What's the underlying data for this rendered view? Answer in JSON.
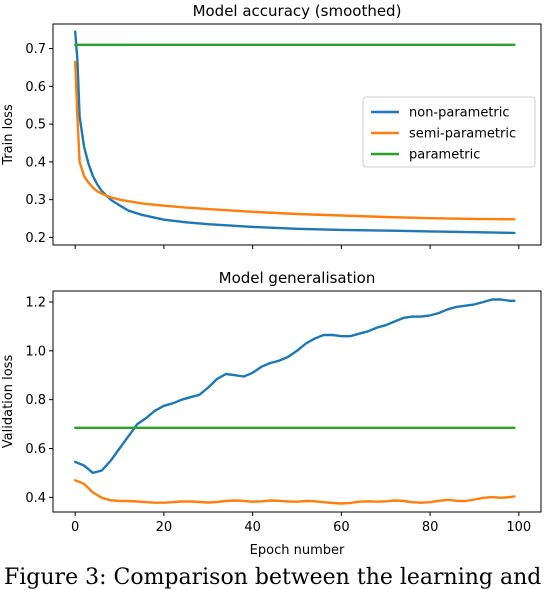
{
  "caption": "Figure 3: Comparison between the learning and",
  "chart_data": [
    {
      "type": "line",
      "title": "Model accuracy (smoothed)",
      "xlabel": "",
      "ylabel": "Train loss",
      "xlim": [
        -5,
        105
      ],
      "ylim": [
        0.18,
        0.765
      ],
      "xticks": [
        0,
        20,
        40,
        60,
        80,
        100
      ],
      "xtick_labels": [
        "",
        "",
        "",
        "",
        "",
        ""
      ],
      "yticks": [
        0.2,
        0.3,
        0.4,
        0.5,
        0.6,
        0.7
      ],
      "ytick_labels": [
        "0.2",
        "0.3",
        "0.4",
        "0.5",
        "0.6",
        "0.7"
      ],
      "grid": false,
      "legend": "center-right",
      "series": [
        {
          "name": "non-parametric",
          "color": "#1f77b4",
          "x": [
            0,
            0.5,
            1,
            2,
            3,
            4,
            5,
            6,
            8,
            10,
            12,
            15,
            20,
            25,
            30,
            40,
            50,
            60,
            70,
            80,
            90,
            99
          ],
          "y": [
            0.745,
            0.67,
            0.52,
            0.44,
            0.395,
            0.362,
            0.34,
            0.323,
            0.3,
            0.285,
            0.271,
            0.26,
            0.247,
            0.24,
            0.235,
            0.228,
            0.223,
            0.22,
            0.218,
            0.216,
            0.214,
            0.212
          ]
        },
        {
          "name": "semi-parametric",
          "color": "#ff7f0e",
          "x": [
            0,
            0.5,
            1,
            2,
            3,
            4,
            5,
            6,
            8,
            10,
            12,
            15,
            20,
            25,
            30,
            40,
            50,
            60,
            70,
            80,
            90,
            99
          ],
          "y": [
            0.665,
            0.52,
            0.4,
            0.362,
            0.345,
            0.332,
            0.322,
            0.316,
            0.306,
            0.3,
            0.296,
            0.29,
            0.284,
            0.279,
            0.275,
            0.268,
            0.262,
            0.258,
            0.254,
            0.251,
            0.249,
            0.248
          ]
        },
        {
          "name": "parametric",
          "color": "#2ca02c",
          "x": [
            0,
            99
          ],
          "y": [
            0.71,
            0.71
          ]
        }
      ]
    },
    {
      "type": "line",
      "title": "Model generalisation",
      "xlabel": "Epoch number",
      "ylabel": "Validation loss",
      "xlim": [
        -5,
        105
      ],
      "ylim": [
        0.34,
        1.245
      ],
      "xticks": [
        0,
        20,
        40,
        60,
        80,
        100
      ],
      "xtick_labels": [
        "0",
        "20",
        "40",
        "60",
        "80",
        "100"
      ],
      "yticks": [
        0.4,
        0.6,
        0.8,
        1.0,
        1.2
      ],
      "ytick_labels": [
        "0.4",
        "0.6",
        "0.8",
        "1.0",
        "1.2"
      ],
      "grid": false,
      "legend": "none",
      "series": [
        {
          "name": "non-parametric",
          "color": "#1f77b4",
          "x": [
            0,
            2,
            4,
            6,
            8,
            10,
            12,
            14,
            16,
            18,
            20,
            22,
            24,
            26,
            28,
            30,
            32,
            34,
            36,
            38,
            40,
            42,
            44,
            46,
            48,
            50,
            52,
            54,
            56,
            58,
            60,
            62,
            64,
            66,
            68,
            70,
            72,
            74,
            76,
            78,
            80,
            82,
            84,
            86,
            88,
            90,
            92,
            94,
            96,
            98,
            99
          ],
          "y": [
            0.545,
            0.53,
            0.5,
            0.51,
            0.55,
            0.6,
            0.65,
            0.7,
            0.725,
            0.755,
            0.775,
            0.785,
            0.8,
            0.81,
            0.82,
            0.85,
            0.885,
            0.905,
            0.9,
            0.895,
            0.91,
            0.935,
            0.95,
            0.96,
            0.975,
            1.0,
            1.03,
            1.05,
            1.065,
            1.065,
            1.06,
            1.06,
            1.07,
            1.08,
            1.095,
            1.105,
            1.12,
            1.135,
            1.14,
            1.14,
            1.145,
            1.155,
            1.17,
            1.18,
            1.185,
            1.19,
            1.2,
            1.21,
            1.21,
            1.205,
            1.205
          ]
        },
        {
          "name": "semi-parametric",
          "color": "#ff7f0e",
          "x": [
            0,
            2,
            4,
            6,
            8,
            10,
            12,
            14,
            16,
            18,
            20,
            22,
            24,
            26,
            28,
            30,
            32,
            34,
            36,
            38,
            40,
            42,
            44,
            46,
            48,
            50,
            52,
            54,
            56,
            58,
            60,
            62,
            64,
            66,
            68,
            70,
            72,
            74,
            76,
            78,
            80,
            82,
            84,
            86,
            88,
            90,
            92,
            94,
            96,
            98,
            99
          ],
          "y": [
            0.47,
            0.455,
            0.42,
            0.398,
            0.388,
            0.385,
            0.385,
            0.383,
            0.38,
            0.378,
            0.378,
            0.38,
            0.383,
            0.383,
            0.381,
            0.379,
            0.381,
            0.385,
            0.387,
            0.385,
            0.382,
            0.384,
            0.387,
            0.386,
            0.383,
            0.382,
            0.385,
            0.384,
            0.38,
            0.377,
            0.375,
            0.377,
            0.382,
            0.384,
            0.382,
            0.384,
            0.387,
            0.385,
            0.38,
            0.378,
            0.38,
            0.386,
            0.39,
            0.386,
            0.385,
            0.391,
            0.398,
            0.401,
            0.398,
            0.401,
            0.404
          ]
        },
        {
          "name": "parametric",
          "color": "#2ca02c",
          "x": [
            0,
            99
          ],
          "y": [
            0.685,
            0.685
          ]
        }
      ]
    }
  ]
}
